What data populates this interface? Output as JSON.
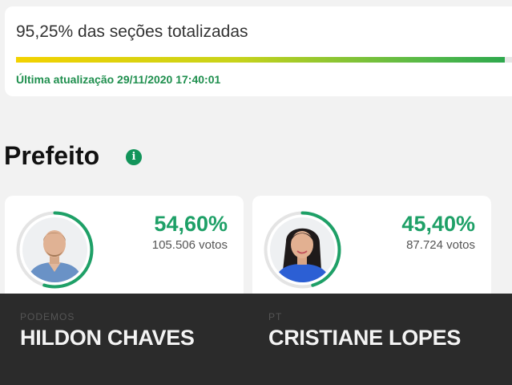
{
  "totalization": {
    "title": "95,25% das seções totalizadas",
    "fraction": 0.9525,
    "last_update": "Última atualização 29/11/2020 17:40:01"
  },
  "section": {
    "title": "Prefeito",
    "info_icon": "info-icon"
  },
  "candidates": [
    {
      "percent": "54,60%",
      "percent_value": 54.6,
      "votes": "105.506 votos",
      "party": "PODEMOS",
      "name": "HILDON CHAVES"
    },
    {
      "percent": "45,40%",
      "percent_value": 45.4,
      "votes": "87.724 votos",
      "party": "PT",
      "name": "CRISTIANE LOPES"
    }
  ],
  "colors": {
    "accent_green": "#1ea067",
    "progress_start": "#f3d200",
    "progress_end": "#2ea84d",
    "overlay": "#222222"
  }
}
